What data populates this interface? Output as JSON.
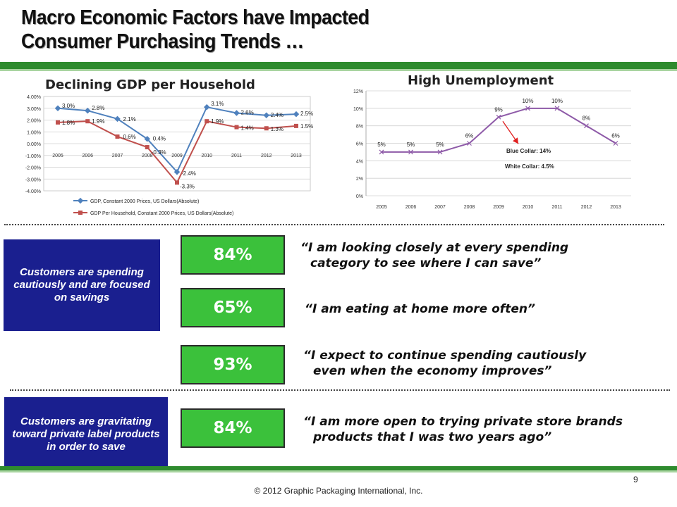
{
  "slide": {
    "title_line1": "Macro Economic Factors have Impacted",
    "title_line2": "Consumer Purchasing Trends …",
    "page_number": "9",
    "footer": "© 2012 Graphic Packaging International, Inc.",
    "colors": {
      "band_green": "#2e8b2e",
      "stat_green": "#3bc13b",
      "box_blue": "#1a1f8f"
    }
  },
  "gdp_heading": "Declining GDP per Household",
  "unemp_heading": "High Unemployment",
  "chart_data": [
    {
      "type": "line",
      "title": "",
      "categories": [
        "2005",
        "2006",
        "2007",
        "2008",
        "2009",
        "2010",
        "2011",
        "2012",
        "2013"
      ],
      "ylim": [
        -4,
        4
      ],
      "y_ticks": [
        "4.00%",
        "3.00%",
        "2.00%",
        "1.00%",
        "0.00%",
        "-1.00%",
        "-2.00%",
        "-3.00%",
        "-4.00%"
      ],
      "grid": true,
      "legend_position": "bottom",
      "series": [
        {
          "name": "GDP, Constant 2000 Prices, US Dollars(Absolute)",
          "color": "#4f81bd",
          "values": [
            3.0,
            2.8,
            2.1,
            0.4,
            -2.4,
            3.1,
            2.6,
            2.4,
            2.5
          ],
          "labels": [
            "3.0%",
            "2.8%",
            "2.1%",
            "0.4%",
            "-2.4%",
            "3.1%",
            "2.6%",
            "2.4%",
            "2.5%"
          ]
        },
        {
          "name": "GDP Per Household, Constant 2000 Prices, US Dollars(Absolute)",
          "color": "#c0504d",
          "values": [
            1.8,
            1.9,
            0.6,
            -0.3,
            -3.3,
            1.9,
            1.4,
            1.3,
            1.5
          ],
          "labels": [
            "1.8%",
            "1.9%",
            "0.6%",
            "-0.3%",
            "-3.3%",
            "1.9%",
            "1.4%",
            "1.3%",
            "1.5%"
          ]
        }
      ]
    },
    {
      "type": "line",
      "title": "",
      "categories": [
        "2005",
        "2006",
        "2007",
        "2008",
        "2009",
        "2010",
        "2011",
        "2012",
        "2013"
      ],
      "ylim": [
        0,
        12
      ],
      "y_ticks": [
        "12%",
        "10%",
        "8%",
        "6%",
        "4%",
        "2%",
        "0%"
      ],
      "grid": true,
      "series": [
        {
          "color": "#8e5aa8",
          "values": [
            5,
            5,
            5,
            6,
            9,
            10,
            10,
            8,
            6
          ],
          "labels": [
            "5%",
            "5%",
            "5%",
            "6%",
            "9%",
            "10%",
            "10%",
            "8%",
            "6%"
          ]
        }
      ],
      "annotations": [
        "Blue Collar: 14%",
        "White Collar: 4.5%"
      ]
    }
  ],
  "rows": [
    {
      "box": "Customers  are spending cautiously and are focused on savings"
    },
    {
      "box": "Customers are gravitating toward private label products in order to save"
    }
  ],
  "stats": [
    {
      "value": "84%",
      "quote_line1": "“I am looking closely at every spending",
      "quote_line2": "category  to see where I can save”"
    },
    {
      "value": "65%",
      "quote_line1": "“I am eating at home more often”",
      "quote_line2": ""
    },
    {
      "value": "93%",
      "quote_line1": "“I expect to continue spending cautiously",
      "quote_line2": "even when the economy improves”"
    },
    {
      "value": "84%",
      "quote_line1": "“I am more open to trying private store brands",
      "quote_line2": "products that I was two years ago”"
    }
  ]
}
